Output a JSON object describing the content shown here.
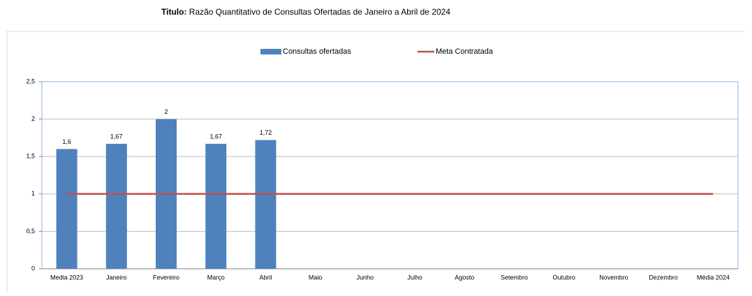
{
  "chart_data": {
    "type": "bar",
    "title_label": "Titulo:",
    "title": "Razão Quantitativo de Consultas Ofertadas de Janeiro a Abril de 2024",
    "categories": [
      "Media 2023",
      "Janeiro",
      "Fevereiro",
      "Março",
      "Abril",
      "Maio",
      "Junho",
      "Julho",
      "Agosto",
      "Setembro",
      "Outubro",
      "Novembro",
      "Dezembro",
      "Média 2024"
    ],
    "series": [
      {
        "name": "Consultas ofertadas",
        "type": "bar",
        "color": "#4f81bd",
        "values": [
          1.6,
          1.67,
          2,
          1.67,
          1.72,
          null,
          null,
          null,
          null,
          null,
          null,
          null,
          null,
          null
        ],
        "value_labels": [
          "1,6",
          "1,67",
          "2",
          "1,67",
          "1,72",
          null,
          null,
          null,
          null,
          null,
          null,
          null,
          null,
          null
        ]
      },
      {
        "name": "Meta Contratada",
        "type": "line",
        "color": "#c0504d",
        "values": [
          1,
          1,
          1,
          1,
          1,
          1,
          1,
          1,
          1,
          1,
          1,
          1,
          1,
          1
        ]
      }
    ],
    "ylim": [
      0,
      2.5
    ],
    "yticks": [
      0,
      {
        "value": 0.5,
        "label": "0,5"
      },
      1,
      {
        "value": 1.5,
        "label": "1,5"
      },
      2,
      {
        "value": 2.5,
        "label": "2,5"
      }
    ],
    "grid": true,
    "legend": "top"
  }
}
